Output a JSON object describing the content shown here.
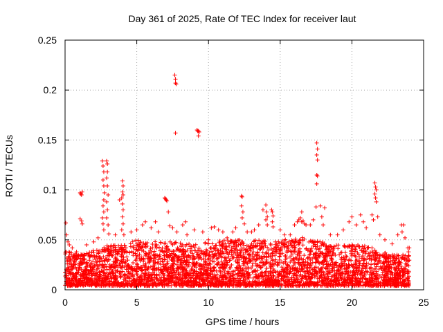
{
  "chart_data": {
    "type": "scatter",
    "title": "Day 361 of 2025, Rate Of TEC Index for receiver laut",
    "xlabel": "GPS time / hours",
    "ylabel": "ROTI / TECUs",
    "xlim": [
      0,
      25
    ],
    "ylim": [
      0,
      0.25
    ],
    "x_ticks": [
      0,
      5,
      10,
      15,
      20,
      25
    ],
    "x_tick_labels": [
      "0",
      "5",
      "10",
      "15",
      "20",
      "25"
    ],
    "y_ticks": [
      0,
      0.05,
      0.1,
      0.15,
      0.2,
      0.25
    ],
    "y_tick_labels": [
      "0",
      "0.05",
      "0.1",
      "0.15",
      "0.2",
      "0.25"
    ],
    "grid": true,
    "marker": "+",
    "marker_color": "#ff0000",
    "series": [
      {
        "name": "ROTI",
        "points": [
          [
            0.05,
            0.067
          ],
          [
            0.1,
            0.055
          ],
          [
            0.2,
            0.048
          ],
          [
            0.3,
            0.045
          ],
          [
            0.5,
            0.042
          ],
          [
            0.8,
            0.038
          ],
          [
            1.05,
            0.097
          ],
          [
            1.1,
            0.096
          ],
          [
            1.15,
            0.095
          ],
          [
            1.2,
            0.098
          ],
          [
            1.05,
            0.071
          ],
          [
            1.15,
            0.069
          ],
          [
            1.2,
            0.066
          ],
          [
            1.5,
            0.045
          ],
          [
            2.0,
            0.048
          ],
          [
            2.3,
            0.052
          ],
          [
            2.6,
            0.129
          ],
          [
            2.65,
            0.124
          ],
          [
            2.7,
            0.118
          ],
          [
            2.65,
            0.11
          ],
          [
            2.7,
            0.104
          ],
          [
            2.75,
            0.097
          ],
          [
            2.7,
            0.09
          ],
          [
            2.65,
            0.084
          ],
          [
            2.7,
            0.078
          ],
          [
            2.6,
            0.072
          ],
          [
            2.65,
            0.066
          ],
          [
            2.7,
            0.06
          ],
          [
            2.9,
            0.129
          ],
          [
            2.95,
            0.126
          ],
          [
            2.95,
            0.118
          ],
          [
            2.9,
            0.112
          ],
          [
            2.95,
            0.104
          ],
          [
            3.0,
            0.095
          ],
          [
            2.9,
            0.088
          ],
          [
            2.95,
            0.08
          ],
          [
            2.9,
            0.072
          ],
          [
            3.0,
            0.065
          ],
          [
            3.05,
            0.056
          ],
          [
            3.5,
            0.055
          ],
          [
            3.8,
            0.09
          ],
          [
            4.0,
            0.109
          ],
          [
            4.05,
            0.104
          ],
          [
            4.0,
            0.098
          ],
          [
            4.05,
            0.095
          ],
          [
            3.95,
            0.092
          ],
          [
            4.0,
            0.086
          ],
          [
            4.05,
            0.08
          ],
          [
            4.0,
            0.073
          ],
          [
            4.05,
            0.066
          ],
          [
            3.95,
            0.06
          ],
          [
            4.1,
            0.055
          ],
          [
            4.6,
            0.058
          ],
          [
            5.0,
            0.06
          ],
          [
            5.4,
            0.065
          ],
          [
            5.6,
            0.068
          ],
          [
            6.0,
            0.062
          ],
          [
            6.3,
            0.068
          ],
          [
            6.5,
            0.058
          ],
          [
            6.95,
            0.092
          ],
          [
            7.0,
            0.091
          ],
          [
            7.05,
            0.09
          ],
          [
            7.1,
            0.089
          ],
          [
            7.2,
            0.078
          ],
          [
            7.3,
            0.064
          ],
          [
            7.5,
            0.062
          ],
          [
            7.65,
            0.215
          ],
          [
            7.7,
            0.211
          ],
          [
            7.7,
            0.207
          ],
          [
            7.75,
            0.206
          ],
          [
            7.7,
            0.157
          ],
          [
            7.8,
            0.058
          ],
          [
            8.2,
            0.065
          ],
          [
            8.4,
            0.068
          ],
          [
            8.5,
            0.055
          ],
          [
            9.0,
            0.06
          ],
          [
            9.2,
            0.16
          ],
          [
            9.25,
            0.159
          ],
          [
            9.3,
            0.159
          ],
          [
            9.35,
            0.158
          ],
          [
            9.3,
            0.154
          ],
          [
            9.6,
            0.058
          ],
          [
            10.0,
            0.05
          ],
          [
            10.2,
            0.062
          ],
          [
            10.4,
            0.063
          ],
          [
            10.7,
            0.06
          ],
          [
            11.0,
            0.058
          ],
          [
            11.3,
            0.052
          ],
          [
            11.7,
            0.058
          ],
          [
            11.9,
            0.062
          ],
          [
            12.3,
            0.094
          ],
          [
            12.35,
            0.093
          ],
          [
            12.3,
            0.084
          ],
          [
            12.4,
            0.078
          ],
          [
            12.35,
            0.072
          ],
          [
            12.5,
            0.066
          ],
          [
            12.7,
            0.058
          ],
          [
            13.0,
            0.058
          ],
          [
            13.2,
            0.06
          ],
          [
            13.5,
            0.065
          ],
          [
            13.8,
            0.08
          ],
          [
            14.0,
            0.085
          ],
          [
            14.05,
            0.078
          ],
          [
            14.1,
            0.073
          ],
          [
            14.0,
            0.07
          ],
          [
            14.1,
            0.065
          ],
          [
            14.4,
            0.08
          ],
          [
            14.45,
            0.078
          ],
          [
            14.5,
            0.074
          ],
          [
            14.45,
            0.068
          ],
          [
            14.5,
            0.063
          ],
          [
            15.0,
            0.06
          ],
          [
            15.3,
            0.055
          ],
          [
            15.7,
            0.055
          ],
          [
            16.0,
            0.065
          ],
          [
            16.2,
            0.068
          ],
          [
            16.3,
            0.07
          ],
          [
            16.4,
            0.072
          ],
          [
            16.5,
            0.068
          ],
          [
            16.6,
            0.069
          ],
          [
            16.7,
            0.066
          ],
          [
            16.8,
            0.065
          ],
          [
            16.5,
            0.078
          ],
          [
            17.1,
            0.065
          ],
          [
            17.3,
            0.07
          ],
          [
            17.55,
            0.147
          ],
          [
            17.6,
            0.141
          ],
          [
            17.55,
            0.135
          ],
          [
            17.6,
            0.13
          ],
          [
            17.55,
            0.115
          ],
          [
            17.6,
            0.114
          ],
          [
            17.55,
            0.106
          ],
          [
            17.5,
            0.083
          ],
          [
            17.8,
            0.084
          ],
          [
            18.1,
            0.082
          ],
          [
            17.9,
            0.073
          ],
          [
            18.0,
            0.065
          ],
          [
            18.5,
            0.055
          ],
          [
            19.0,
            0.055
          ],
          [
            19.4,
            0.06
          ],
          [
            19.8,
            0.068
          ],
          [
            20.0,
            0.073
          ],
          [
            20.3,
            0.065
          ],
          [
            20.6,
            0.075
          ],
          [
            20.8,
            0.068
          ],
          [
            21.0,
            0.062
          ],
          [
            21.4,
            0.075
          ],
          [
            21.5,
            0.07
          ],
          [
            21.6,
            0.107
          ],
          [
            21.65,
            0.103
          ],
          [
            21.7,
            0.1
          ],
          [
            21.6,
            0.096
          ],
          [
            21.65,
            0.092
          ],
          [
            21.7,
            0.088
          ],
          [
            21.8,
            0.073
          ],
          [
            21.95,
            0.055
          ],
          [
            22.3,
            0.05
          ],
          [
            22.8,
            0.046
          ],
          [
            23.2,
            0.055
          ],
          [
            23.45,
            0.065
          ],
          [
            23.6,
            0.065
          ],
          [
            23.5,
            0.058
          ],
          [
            23.7,
            0.052
          ],
          [
            23.9,
            0.042
          ],
          [
            24.0,
            0.042
          ],
          [
            23.95,
            0.038
          ]
        ]
      }
    ],
    "background_band": {
      "description": "dense noise floor of ROTI samples",
      "envelope_hours": [
        0,
        1,
        2,
        3,
        4,
        5,
        6,
        7,
        8,
        9,
        10,
        11,
        12,
        13,
        14,
        15,
        16,
        17,
        18,
        19,
        20,
        21,
        22,
        23,
        24
      ],
      "envelope_max": [
        0.04,
        0.035,
        0.04,
        0.045,
        0.045,
        0.05,
        0.05,
        0.048,
        0.048,
        0.045,
        0.048,
        0.05,
        0.05,
        0.05,
        0.05,
        0.048,
        0.055,
        0.05,
        0.048,
        0.045,
        0.045,
        0.045,
        0.038,
        0.035,
        0.035
      ],
      "floor": 0.004,
      "samples_per_hour": 160
    }
  }
}
